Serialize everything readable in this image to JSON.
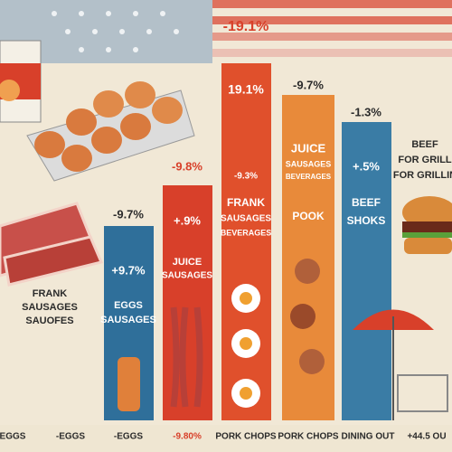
{
  "header": {
    "headline": "-19.1%"
  },
  "bars": [
    {
      "change_top": "-9.7%",
      "change_inner": "+9.7%",
      "labels": [
        "EGGS",
        "SAUSAGES"
      ]
    },
    {
      "change_top": "-9.8%",
      "change_inner": "+.9%",
      "labels": [
        "JUICE",
        "SAUSAGES"
      ]
    },
    {
      "change_top": "19.1%",
      "change_inner": "-9.3%",
      "labels": [
        "FRANK",
        "SAUSAGES",
        "BEVERAGES"
      ]
    },
    {
      "change_top": "-9.7%",
      "change_inner": "POOK",
      "labels": [
        "JUICE",
        "SAUSAGES",
        "BEVERAGES"
      ]
    },
    {
      "change_top": "-1.3%",
      "change_inner": "+.5%",
      "labels": [
        "BEEF",
        "SHOKS"
      ]
    }
  ],
  "left_labels": [
    "FRANK",
    "SAUSAGES",
    "SAUOFES"
  ],
  "right_labels": [
    "BEEF",
    "FOR GRILL",
    "FOR GRILLIN"
  ],
  "footer_labels": [
    "EGGS",
    "-EGGS",
    "-EGGS",
    "-9.80%",
    "PORK CHOPS",
    "PORK CHOPS",
    "DINING OUT",
    "+44.5 OU"
  ]
}
